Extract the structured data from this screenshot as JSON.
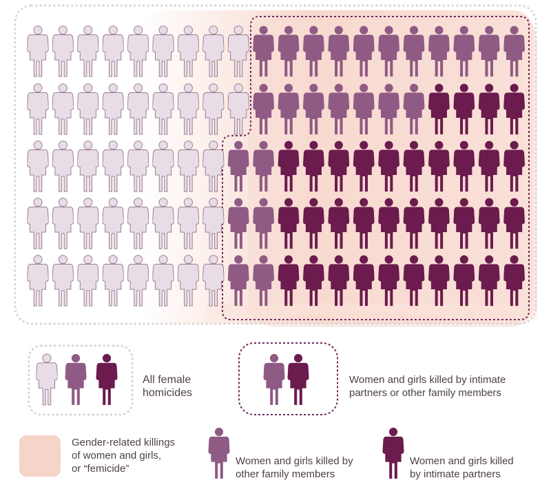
{
  "colors": {
    "all_female": "#e8dde6",
    "all_female_outline": "#8d6f86",
    "family": "#8f5a84",
    "intimate": "#6b1b4d",
    "femicide_glow": "#f6cfc2",
    "outer_border": "#d7d5d6",
    "partner_family_border": "#7d3b69"
  },
  "icons": {
    "figure": "female-figure-icon"
  },
  "grid": {
    "rows": 5,
    "cols": 20,
    "row_counts": [
      {
        "all_female": 9,
        "family": 11,
        "intimate": 0
      },
      {
        "all_female": 9,
        "family": 7,
        "intimate": 4
      },
      {
        "all_female": 8,
        "family": 2,
        "intimate": 10
      },
      {
        "all_female": 8,
        "family": 2,
        "intimate": 10
      },
      {
        "all_female": 8,
        "family": 2,
        "intimate": 10
      }
    ]
  },
  "legend": {
    "all_female_homicides": "All female\nhomicides",
    "partners_or_family": "Women and girls killed by intimate\npartners or other family members",
    "femicide": "Gender-related killings\nof women and girls,\nor “femicide”",
    "other_family": "Women and girls killed by\nother family members",
    "intimate_partners": "Women and girls killed\nby intimate partners"
  }
}
